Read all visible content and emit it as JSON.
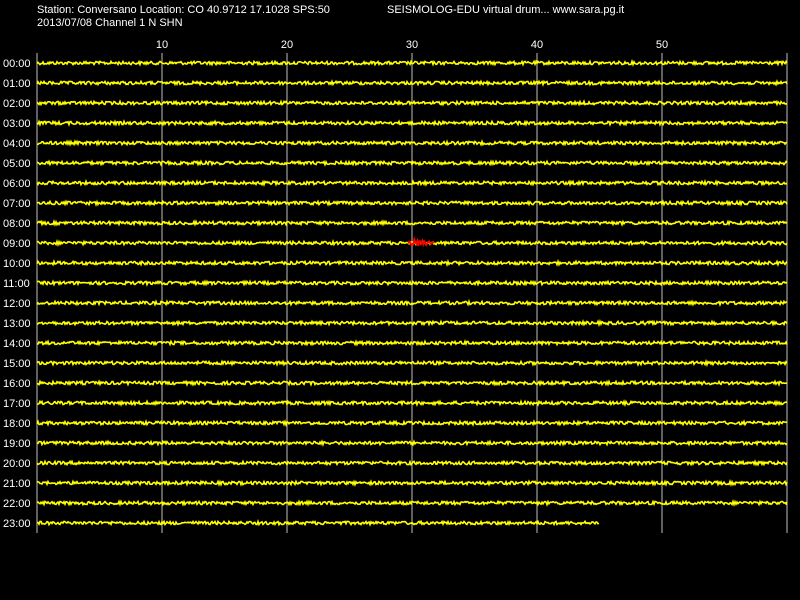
{
  "header": {
    "station_line": "Station: Conversano Location: CO 40.9712 17.1028 SPS:50",
    "app_line": "SEISMOLOG-EDU virtual drum... www.sara.pg.it",
    "date_line": "2013/07/08  Channel 1 N SHN"
  },
  "drum": {
    "minute_ticks": [
      "10",
      "20",
      "30",
      "40",
      "50"
    ],
    "minute_tick_values": [
      10,
      20,
      30,
      40,
      50
    ],
    "minutes_per_row": 60,
    "hour_labels": [
      "00:00",
      "01:00",
      "02:00",
      "03:00",
      "04:00",
      "05:00",
      "06:00",
      "07:00",
      "08:00",
      "09:00",
      "10:00",
      "11:00",
      "12:00",
      "13:00",
      "14:00",
      "15:00",
      "16:00",
      "17:00",
      "18:00",
      "19:00",
      "20:00",
      "21:00",
      "22:00",
      "23:00"
    ],
    "last_row_minutes_recorded": 45,
    "trace_color": "#ffff00",
    "event_color": "#ff0000",
    "gridline_color": "#c0c0c0",
    "background_color": "#000000",
    "event": {
      "hour_label": "09:00",
      "start_minute": 29.7,
      "end_minute": 31.8
    }
  }
}
